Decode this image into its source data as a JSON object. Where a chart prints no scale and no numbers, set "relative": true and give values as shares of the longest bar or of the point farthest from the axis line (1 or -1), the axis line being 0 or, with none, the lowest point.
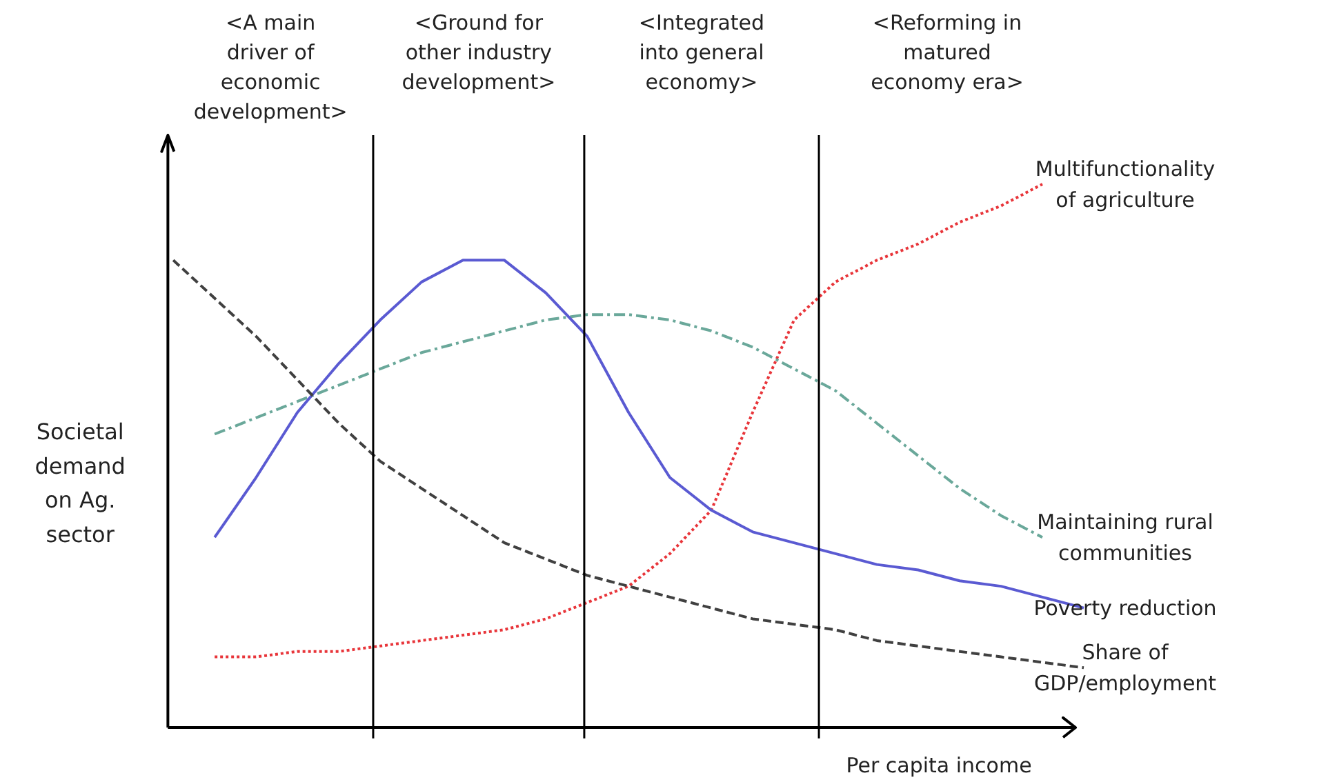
{
  "chart_data": {
    "type": "line",
    "relative": true,
    "legend": false,
    "grid": false,
    "tick_labels": false,
    "xlabel": "Per capita income",
    "ylabel": "Societal\ndemand\non Ag.\nsector",
    "categories": [
      null,
      null,
      null,
      null,
      null,
      null,
      null,
      null,
      null,
      null,
      null,
      null,
      null,
      null,
      null,
      null,
      null,
      null,
      null,
      null,
      null,
      null,
      null
    ],
    "series": [
      {
        "name": "Multifunctionality\nof agriculture",
        "color": "#e8353a",
        "line_style": "dotted",
        "values": [
          null,
          0.13,
          0.13,
          0.14,
          0.14,
          0.15,
          0.16,
          0.17,
          0.18,
          0.2,
          0.23,
          0.26,
          0.32,
          0.4,
          0.58,
          0.75,
          0.82,
          0.86,
          0.89,
          0.93,
          0.96,
          1.0,
          null
        ]
      },
      {
        "name": "Maintaining rural\ncommunities",
        "color": "#6aa89a",
        "line_style": "dashdot",
        "values": [
          null,
          0.54,
          0.57,
          0.6,
          0.63,
          0.66,
          0.69,
          0.71,
          0.73,
          0.75,
          0.76,
          0.76,
          0.75,
          0.73,
          0.7,
          0.66,
          0.62,
          0.56,
          0.5,
          0.44,
          0.39,
          0.35,
          null
        ]
      },
      {
        "name": "Poverty reduction",
        "color": "#5a5ad2",
        "line_style": "solid",
        "values": [
          null,
          0.35,
          0.46,
          0.58,
          0.67,
          0.75,
          0.82,
          0.86,
          0.86,
          0.8,
          0.72,
          0.58,
          0.46,
          0.4,
          0.36,
          0.34,
          0.32,
          0.3,
          0.29,
          0.27,
          0.26,
          0.24,
          0.22
        ]
      },
      {
        "name": "Share of\nGDP/employment",
        "color": "#404040",
        "line_style": "dashed",
        "values": [
          0.86,
          0.79,
          0.72,
          0.64,
          0.56,
          0.49,
          0.44,
          0.39,
          0.34,
          0.31,
          0.28,
          0.26,
          0.24,
          0.22,
          0.2,
          0.19,
          0.18,
          0.16,
          0.15,
          0.14,
          0.13,
          0.12,
          0.11
        ]
      }
    ],
    "annotations": [
      "<A main\ndriver of\neconomic\ndevelopment>",
      "<Ground for\nother industry\ndevelopment>",
      "<Integrated\ninto general\neconomy>",
      "<Reforming in\nmatured\neconomy era>"
    ]
  }
}
